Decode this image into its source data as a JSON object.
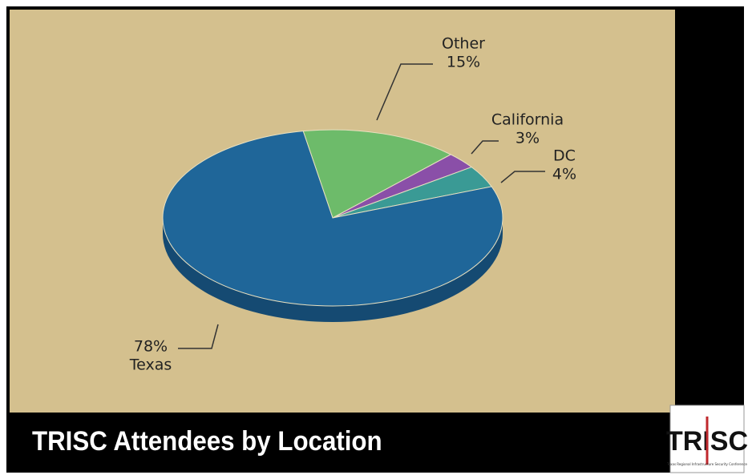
{
  "chart_data": {
    "type": "pie",
    "title": "TRISC Attendees by Location",
    "categories": [
      "Other",
      "California",
      "DC",
      "Texas"
    ],
    "values": [
      15,
      3,
      4,
      78
    ],
    "value_labels": [
      "15%",
      "3%",
      "4%",
      "78%"
    ],
    "colors": [
      "#6dbb6a",
      "#8a4fa8",
      "#3a9a95",
      "#1f6699"
    ],
    "logo": "TRISC",
    "logo_subtitle": "Texas Regional Infrastructure Security Conference"
  }
}
